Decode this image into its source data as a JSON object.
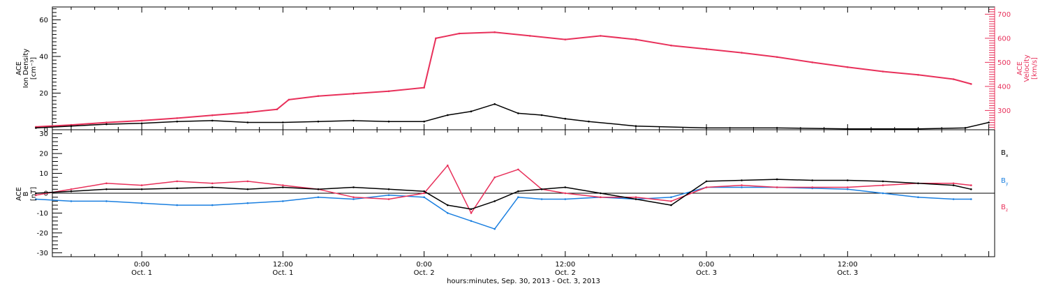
{
  "chart_data": [
    {
      "type": "scatter",
      "panel": "top",
      "ylabel_left": [
        "ACE",
        "Ion Density",
        "[cm⁻³]"
      ],
      "ylabel_right": [
        "ACE",
        "Velocity",
        "[km/s]"
      ],
      "y_left_ticks": [
        "0",
        "20",
        "40",
        "60"
      ],
      "ylim_left": [
        0,
        67
      ],
      "y_right_ticks": [
        "300",
        "400",
        "500",
        "600",
        "700"
      ],
      "ylim_right": [
        220,
        730
      ],
      "series": [
        {
          "color": "#000000",
          "axis": "left",
          "points": [
            [
              -9,
              1
            ],
            [
              -6,
              2
            ],
            [
              -3,
              3
            ],
            [
              0,
              3.5
            ],
            [
              3,
              4.5
            ],
            [
              6,
              5
            ],
            [
              9,
              4
            ],
            [
              12,
              4
            ],
            [
              15,
              4.5
            ],
            [
              18,
              5
            ],
            [
              21,
              4.5
            ],
            [
              24,
              4.5
            ],
            [
              26,
              8
            ],
            [
              28,
              10
            ],
            [
              30,
              14
            ],
            [
              32,
              9
            ],
            [
              34,
              8
            ],
            [
              36,
              6
            ],
            [
              38,
              4.5
            ],
            [
              42,
              2
            ],
            [
              48,
              1
            ],
            [
              54,
              1
            ],
            [
              60,
              0.5
            ],
            [
              66,
              0.5
            ],
            [
              70,
              1
            ],
            [
              72,
              4
            ]
          ]
        },
        {
          "color": "#e8305a",
          "axis": "right",
          "points": [
            [
              -9,
              232
            ],
            [
              -6,
              240
            ],
            [
              -3,
              250
            ],
            [
              0,
              258
            ],
            [
              3,
              268
            ],
            [
              6,
              280
            ],
            [
              9,
              292
            ],
            [
              11.5,
              305
            ],
            [
              12.5,
              345
            ],
            [
              15,
              360
            ],
            [
              18,
              370
            ],
            [
              21,
              380
            ],
            [
              24,
              395
            ],
            [
              25,
              600
            ],
            [
              27,
              620
            ],
            [
              30,
              625
            ],
            [
              33,
              610
            ],
            [
              36,
              595
            ],
            [
              39,
              610
            ],
            [
              42,
              595
            ],
            [
              45,
              570
            ],
            [
              48,
              555
            ],
            [
              51,
              540
            ],
            [
              54,
              522
            ],
            [
              57,
              500
            ],
            [
              60,
              480
            ],
            [
              63,
              462
            ],
            [
              66,
              448
            ],
            [
              69,
              430
            ],
            [
              70.5,
              410
            ]
          ]
        }
      ]
    },
    {
      "type": "line",
      "panel": "bottom",
      "ylabel": [
        "ACE",
        "B",
        "[nT]"
      ],
      "y_ticks": [
        "-30",
        "-20",
        "-10",
        "0",
        "10",
        "20",
        "30"
      ],
      "ylim": [
        -32,
        32
      ],
      "series": [
        {
          "name": "Bx",
          "label_main": "B",
          "label_sub": "x",
          "color": "#000000",
          "points": [
            [
              -9,
              0
            ],
            [
              -6,
              1
            ],
            [
              -3,
              2
            ],
            [
              0,
              2
            ],
            [
              3,
              2.5
            ],
            [
              6,
              3
            ],
            [
              9,
              2
            ],
            [
              12,
              3
            ],
            [
              15,
              2
            ],
            [
              18,
              3
            ],
            [
              21,
              2
            ],
            [
              24,
              1
            ],
            [
              26,
              -6
            ],
            [
              28,
              -8
            ],
            [
              30,
              -4
            ],
            [
              32,
              1
            ],
            [
              34,
              2
            ],
            [
              36,
              3
            ],
            [
              39,
              0
            ],
            [
              42,
              -3
            ],
            [
              45,
              -6
            ],
            [
              48,
              6
            ],
            [
              51,
              6.5
            ],
            [
              54,
              7
            ],
            [
              57,
              6.5
            ],
            [
              60,
              6.5
            ],
            [
              63,
              6
            ],
            [
              66,
              5
            ],
            [
              69,
              4
            ],
            [
              70.5,
              2
            ]
          ]
        },
        {
          "name": "By",
          "label_main": "B",
          "label_sub": "y",
          "color": "#1a7fe0",
          "points": [
            [
              -9,
              -3
            ],
            [
              -6,
              -4
            ],
            [
              -3,
              -4
            ],
            [
              0,
              -5
            ],
            [
              3,
              -6
            ],
            [
              6,
              -6
            ],
            [
              9,
              -5
            ],
            [
              12,
              -4
            ],
            [
              15,
              -2
            ],
            [
              18,
              -3
            ],
            [
              21,
              -1
            ],
            [
              24,
              -2
            ],
            [
              26,
              -10
            ],
            [
              28,
              -14
            ],
            [
              30,
              -18
            ],
            [
              32,
              -2
            ],
            [
              34,
              -3
            ],
            [
              36,
              -3
            ],
            [
              39,
              -2
            ],
            [
              42,
              -3
            ],
            [
              45,
              -2
            ],
            [
              48,
              3
            ],
            [
              51,
              3
            ],
            [
              54,
              3
            ],
            [
              57,
              2.5
            ],
            [
              60,
              2
            ],
            [
              63,
              0
            ],
            [
              66,
              -2
            ],
            [
              69,
              -3
            ],
            [
              70.5,
              -3
            ]
          ]
        },
        {
          "name": "Bz",
          "label_main": "B",
          "label_sub": "z",
          "color": "#e8305a",
          "points": [
            [
              -9,
              -1
            ],
            [
              -6,
              2
            ],
            [
              -3,
              5
            ],
            [
              0,
              4
            ],
            [
              3,
              6
            ],
            [
              6,
              5
            ],
            [
              9,
              6
            ],
            [
              12,
              4
            ],
            [
              15,
              2
            ],
            [
              18,
              -2
            ],
            [
              21,
              -3
            ],
            [
              24,
              0
            ],
            [
              26,
              14
            ],
            [
              28,
              -10
            ],
            [
              30,
              8
            ],
            [
              32,
              12
            ],
            [
              34,
              2
            ],
            [
              36,
              0
            ],
            [
              39,
              -2
            ],
            [
              42,
              -2
            ],
            [
              45,
              -4
            ],
            [
              48,
              3
            ],
            [
              51,
              4
            ],
            [
              54,
              3
            ],
            [
              57,
              3
            ],
            [
              60,
              3
            ],
            [
              63,
              4
            ],
            [
              66,
              5
            ],
            [
              69,
              5
            ],
            [
              70.5,
              4
            ]
          ]
        }
      ]
    }
  ],
  "x_axis": {
    "ticks": [
      {
        "hours": 0,
        "time": "0:00",
        "day": "Oct. 1"
      },
      {
        "hours": 12,
        "time": "12:00",
        "day": "Oct. 1"
      },
      {
        "hours": 24,
        "time": "0:00",
        "day": "Oct. 2"
      },
      {
        "hours": 36,
        "time": "12:00",
        "day": "Oct. 2"
      },
      {
        "hours": 48,
        "time": "0:00",
        "day": "Oct. 3"
      },
      {
        "hours": 60,
        "time": "12:00",
        "day": "Oct. 3"
      }
    ],
    "xlim": [
      -7.6,
      72.5
    ],
    "title": "hours:minutes, Sep. 30, 2013 - Oct. 3, 2013"
  },
  "colors": {
    "black": "#000000",
    "red": "#e8305a",
    "blue": "#1a7fe0",
    "axis": "#000000"
  }
}
